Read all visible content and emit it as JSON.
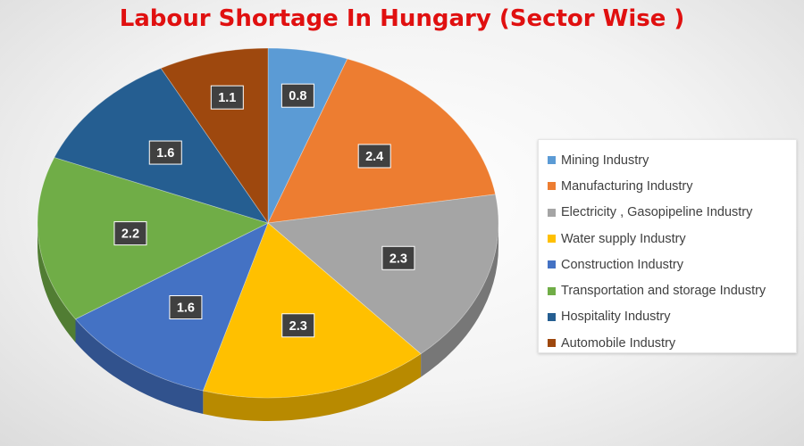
{
  "chart_data": {
    "type": "pie",
    "title": "Labour Shortage In Hungary (Sector Wise )",
    "categories": [
      "Mining Industry",
      "Manufacturing Industry",
      "Electricity , Gasopipeline Industry",
      "Water supply Industry",
      "Construction Industry",
      "Transportation and storage Industry",
      "Hospitality Industry",
      "Automobile Industry"
    ],
    "values": [
      0.8,
      2.4,
      2.3,
      2.3,
      1.6,
      2.2,
      1.6,
      1.1
    ],
    "value_labels": [
      "0.8",
      "2.4",
      "2.3",
      "2.3",
      "1.6",
      "2.2",
      "1.6",
      "1.1"
    ],
    "colors": [
      "#5b9bd5",
      "#ed7d31",
      "#a5a5a5",
      "#ffc000",
      "#4472c4",
      "#70ad47",
      "#255e91",
      "#9e480e"
    ],
    "legend_position": "right",
    "style": "3d-tilted"
  }
}
